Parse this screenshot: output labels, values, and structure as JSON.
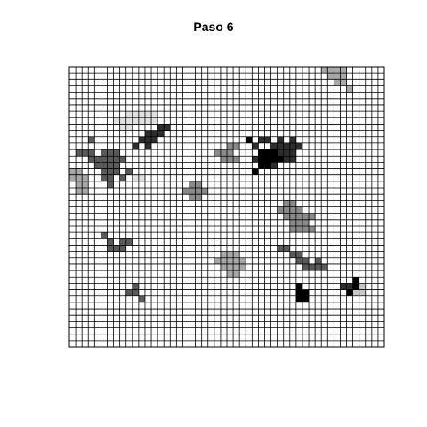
{
  "chart_data": {
    "type": "heatmap",
    "title": "Paso 6",
    "xlabel": "",
    "ylabel": "",
    "grid": true,
    "grid_size": [
      50,
      44
    ],
    "cell_fill_default": "#ffffff",
    "levels": {
      "1": "#e0e0e0",
      "2": "#c8c8c8",
      "3": "#a8a8a8",
      "4": "#8a8a8a",
      "5": "#5a5a5a",
      "6": "#2e2e2e",
      "7": "#000000"
    },
    "cells": [
      {
        "col": 40,
        "row": 0,
        "level": 3
      },
      {
        "col": 41,
        "row": 0,
        "level": 3
      },
      {
        "col": 42,
        "row": 0,
        "level": 3
      },
      {
        "col": 43,
        "row": 0,
        "level": 3
      },
      {
        "col": 41,
        "row": 1,
        "level": 3
      },
      {
        "col": 42,
        "row": 1,
        "level": 3
      },
      {
        "col": 43,
        "row": 1,
        "level": 3
      },
      {
        "col": 42,
        "row": 2,
        "level": 3
      },
      {
        "col": 43,
        "row": 2,
        "level": 3
      },
      {
        "col": 44,
        "row": 3,
        "level": 3
      },
      {
        "col": 9,
        "row": 7,
        "level": 1
      },
      {
        "col": 10,
        "row": 7,
        "level": 1
      },
      {
        "col": 11,
        "row": 7,
        "level": 1
      },
      {
        "col": 12,
        "row": 7,
        "level": 1
      },
      {
        "col": 13,
        "row": 7,
        "level": 1
      },
      {
        "col": 7,
        "row": 8,
        "level": 1
      },
      {
        "col": 8,
        "row": 8,
        "level": 1
      },
      {
        "col": 9,
        "row": 8,
        "level": 1
      },
      {
        "col": 10,
        "row": 8,
        "level": 1
      },
      {
        "col": 11,
        "row": 8,
        "level": 1
      },
      {
        "col": 12,
        "row": 8,
        "level": 1
      },
      {
        "col": 13,
        "row": 8,
        "level": 1
      },
      {
        "col": 8,
        "row": 9,
        "level": 1
      },
      {
        "col": 9,
        "row": 9,
        "level": 1
      },
      {
        "col": 14,
        "row": 9,
        "level": 6
      },
      {
        "col": 15,
        "row": 9,
        "level": 6
      },
      {
        "col": 12,
        "row": 10,
        "level": 6
      },
      {
        "col": 13,
        "row": 10,
        "level": 6
      },
      {
        "col": 14,
        "row": 10,
        "level": 6
      },
      {
        "col": 11,
        "row": 11,
        "level": 6
      },
      {
        "col": 12,
        "row": 11,
        "level": 6
      },
      {
        "col": 13,
        "row": 11,
        "level": 6
      },
      {
        "col": 10,
        "row": 12,
        "level": 6
      },
      {
        "col": 12,
        "row": 12,
        "level": 6
      },
      {
        "col": 3,
        "row": 11,
        "level": 5
      },
      {
        "col": 1,
        "row": 13,
        "level": 5
      },
      {
        "col": 2,
        "row": 13,
        "level": 5
      },
      {
        "col": 3,
        "row": 13,
        "level": 5
      },
      {
        "col": 5,
        "row": 13,
        "level": 5
      },
      {
        "col": 6,
        "row": 13,
        "level": 5
      },
      {
        "col": 7,
        "row": 13,
        "level": 5
      },
      {
        "col": 3,
        "row": 14,
        "level": 5
      },
      {
        "col": 4,
        "row": 14,
        "level": 5
      },
      {
        "col": 5,
        "row": 14,
        "level": 5
      },
      {
        "col": 6,
        "row": 14,
        "level": 5
      },
      {
        "col": 7,
        "row": 14,
        "level": 5
      },
      {
        "col": 8,
        "row": 14,
        "level": 5
      },
      {
        "col": 4,
        "row": 15,
        "level": 5
      },
      {
        "col": 5,
        "row": 15,
        "level": 5
      },
      {
        "col": 6,
        "row": 15,
        "level": 5
      },
      {
        "col": 7,
        "row": 15,
        "level": 5
      },
      {
        "col": 5,
        "row": 16,
        "level": 5
      },
      {
        "col": 6,
        "row": 16,
        "level": 5
      },
      {
        "col": 7,
        "row": 16,
        "level": 5
      },
      {
        "col": 9,
        "row": 16,
        "level": 5
      },
      {
        "col": 5,
        "row": 17,
        "level": 5
      },
      {
        "col": 6,
        "row": 17,
        "level": 5
      },
      {
        "col": 8,
        "row": 17,
        "level": 5
      },
      {
        "col": 6,
        "row": 18,
        "level": 5
      },
      {
        "col": 0,
        "row": 16,
        "level": 3
      },
      {
        "col": 1,
        "row": 16,
        "level": 3
      },
      {
        "col": 0,
        "row": 17,
        "level": 3
      },
      {
        "col": 1,
        "row": 17,
        "level": 3
      },
      {
        "col": 2,
        "row": 17,
        "level": 3
      },
      {
        "col": 1,
        "row": 18,
        "level": 3
      },
      {
        "col": 2,
        "row": 18,
        "level": 3
      },
      {
        "col": 1,
        "row": 19,
        "level": 3
      },
      {
        "col": 2,
        "row": 19,
        "level": 3
      },
      {
        "col": 10,
        "row": 17,
        "level": 1
      },
      {
        "col": 11,
        "row": 17,
        "level": 1
      },
      {
        "col": 25,
        "row": 12,
        "level": 4
      },
      {
        "col": 26,
        "row": 12,
        "level": 4
      },
      {
        "col": 23,
        "row": 13,
        "level": 4
      },
      {
        "col": 24,
        "row": 13,
        "level": 4
      },
      {
        "col": 25,
        "row": 13,
        "level": 4
      },
      {
        "col": 24,
        "row": 14,
        "level": 4
      },
      {
        "col": 25,
        "row": 14,
        "level": 4
      },
      {
        "col": 26,
        "row": 14,
        "level": 4
      },
      {
        "col": 30,
        "row": 11,
        "level": 6
      },
      {
        "col": 31,
        "row": 11,
        "level": 6
      },
      {
        "col": 33,
        "row": 11,
        "level": 6
      },
      {
        "col": 35,
        "row": 11,
        "level": 6
      },
      {
        "col": 29,
        "row": 12,
        "level": 6
      },
      {
        "col": 32,
        "row": 12,
        "level": 6
      },
      {
        "col": 33,
        "row": 12,
        "level": 6
      },
      {
        "col": 34,
        "row": 12,
        "level": 6
      },
      {
        "col": 35,
        "row": 12,
        "level": 6
      },
      {
        "col": 36,
        "row": 12,
        "level": 6
      },
      {
        "col": 30,
        "row": 13,
        "level": 7
      },
      {
        "col": 31,
        "row": 13,
        "level": 7
      },
      {
        "col": 32,
        "row": 13,
        "level": 7
      },
      {
        "col": 33,
        "row": 13,
        "level": 6
      },
      {
        "col": 34,
        "row": 13,
        "level": 6
      },
      {
        "col": 35,
        "row": 13,
        "level": 6
      },
      {
        "col": 29,
        "row": 14,
        "level": 6
      },
      {
        "col": 30,
        "row": 14,
        "level": 7
      },
      {
        "col": 31,
        "row": 14,
        "level": 7
      },
      {
        "col": 32,
        "row": 14,
        "level": 7
      },
      {
        "col": 33,
        "row": 14,
        "level": 7
      },
      {
        "col": 34,
        "row": 14,
        "level": 6
      },
      {
        "col": 35,
        "row": 14,
        "level": 6
      },
      {
        "col": 30,
        "row": 15,
        "level": 7
      },
      {
        "col": 31,
        "row": 15,
        "level": 7
      },
      {
        "col": 32,
        "row": 15,
        "level": 6
      },
      {
        "col": 29,
        "row": 16,
        "level": 7
      },
      {
        "col": 28,
        "row": 11,
        "level": 7
      },
      {
        "col": 19,
        "row": 18,
        "level": 4
      },
      {
        "col": 20,
        "row": 18,
        "level": 4
      },
      {
        "col": 18,
        "row": 19,
        "level": 4
      },
      {
        "col": 19,
        "row": 19,
        "level": 4
      },
      {
        "col": 20,
        "row": 19,
        "level": 4
      },
      {
        "col": 21,
        "row": 19,
        "level": 4
      },
      {
        "col": 19,
        "row": 20,
        "level": 4
      },
      {
        "col": 20,
        "row": 20,
        "level": 4
      },
      {
        "col": 34,
        "row": 21,
        "level": 4
      },
      {
        "col": 35,
        "row": 21,
        "level": 4
      },
      {
        "col": 33,
        "row": 22,
        "level": 4
      },
      {
        "col": 34,
        "row": 22,
        "level": 4
      },
      {
        "col": 35,
        "row": 22,
        "level": 4
      },
      {
        "col": 36,
        "row": 22,
        "level": 4
      },
      {
        "col": 34,
        "row": 23,
        "level": 4
      },
      {
        "col": 35,
        "row": 23,
        "level": 4
      },
      {
        "col": 36,
        "row": 23,
        "level": 4
      },
      {
        "col": 37,
        "row": 23,
        "level": 4
      },
      {
        "col": 38,
        "row": 23,
        "level": 4
      },
      {
        "col": 35,
        "row": 24,
        "level": 4
      },
      {
        "col": 36,
        "row": 24,
        "level": 4
      },
      {
        "col": 37,
        "row": 24,
        "level": 4
      },
      {
        "col": 35,
        "row": 25,
        "level": 4
      },
      {
        "col": 36,
        "row": 25,
        "level": 4
      },
      {
        "col": 37,
        "row": 25,
        "level": 4
      },
      {
        "col": 38,
        "row": 25,
        "level": 4
      },
      {
        "col": 5,
        "row": 26,
        "level": 5
      },
      {
        "col": 6,
        "row": 27,
        "level": 5
      },
      {
        "col": 8,
        "row": 27,
        "level": 5
      },
      {
        "col": 9,
        "row": 27,
        "level": 5
      },
      {
        "col": 6,
        "row": 28,
        "level": 5
      },
      {
        "col": 7,
        "row": 28,
        "level": 5
      },
      {
        "col": 8,
        "row": 28,
        "level": 5
      },
      {
        "col": 24,
        "row": 29,
        "level": 3
      },
      {
        "col": 25,
        "row": 29,
        "level": 3
      },
      {
        "col": 26,
        "row": 29,
        "level": 3
      },
      {
        "col": 23,
        "row": 30,
        "level": 3
      },
      {
        "col": 24,
        "row": 30,
        "level": 3
      },
      {
        "col": 25,
        "row": 30,
        "level": 3
      },
      {
        "col": 26,
        "row": 30,
        "level": 3
      },
      {
        "col": 27,
        "row": 30,
        "level": 3
      },
      {
        "col": 24,
        "row": 31,
        "level": 3
      },
      {
        "col": 25,
        "row": 31,
        "level": 3
      },
      {
        "col": 26,
        "row": 31,
        "level": 3
      },
      {
        "col": 27,
        "row": 31,
        "level": 3
      },
      {
        "col": 25,
        "row": 32,
        "level": 3
      },
      {
        "col": 26,
        "row": 32,
        "level": 3
      },
      {
        "col": 33,
        "row": 28,
        "level": 5
      },
      {
        "col": 34,
        "row": 28,
        "level": 5
      },
      {
        "col": 35,
        "row": 29,
        "level": 5
      },
      {
        "col": 36,
        "row": 29,
        "level": 5
      },
      {
        "col": 36,
        "row": 30,
        "level": 5
      },
      {
        "col": 37,
        "row": 30,
        "level": 5
      },
      {
        "col": 39,
        "row": 30,
        "level": 5
      },
      {
        "col": 37,
        "row": 31,
        "level": 5
      },
      {
        "col": 38,
        "row": 31,
        "level": 5
      },
      {
        "col": 39,
        "row": 31,
        "level": 5
      },
      {
        "col": 40,
        "row": 31,
        "level": 5
      },
      {
        "col": 36,
        "row": 34,
        "level": 7
      },
      {
        "col": 36,
        "row": 35,
        "level": 7
      },
      {
        "col": 37,
        "row": 35,
        "level": 7
      },
      {
        "col": 36,
        "row": 36,
        "level": 7
      },
      {
        "col": 37,
        "row": 36,
        "level": 7
      },
      {
        "col": 45,
        "row": 33,
        "level": 7
      },
      {
        "col": 43,
        "row": 34,
        "level": 6
      },
      {
        "col": 44,
        "row": 34,
        "level": 6
      },
      {
        "col": 45,
        "row": 34,
        "level": 7
      },
      {
        "col": 46,
        "row": 34,
        "level": 2
      },
      {
        "col": 44,
        "row": 35,
        "level": 7
      },
      {
        "col": 45,
        "row": 35,
        "level": 2
      },
      {
        "col": 46,
        "row": 35,
        "level": 2
      },
      {
        "col": 10,
        "row": 34,
        "level": 5
      },
      {
        "col": 9,
        "row": 35,
        "level": 5
      },
      {
        "col": 10,
        "row": 35,
        "level": 5
      },
      {
        "col": 11,
        "row": 36,
        "level": 5
      }
    ]
  }
}
